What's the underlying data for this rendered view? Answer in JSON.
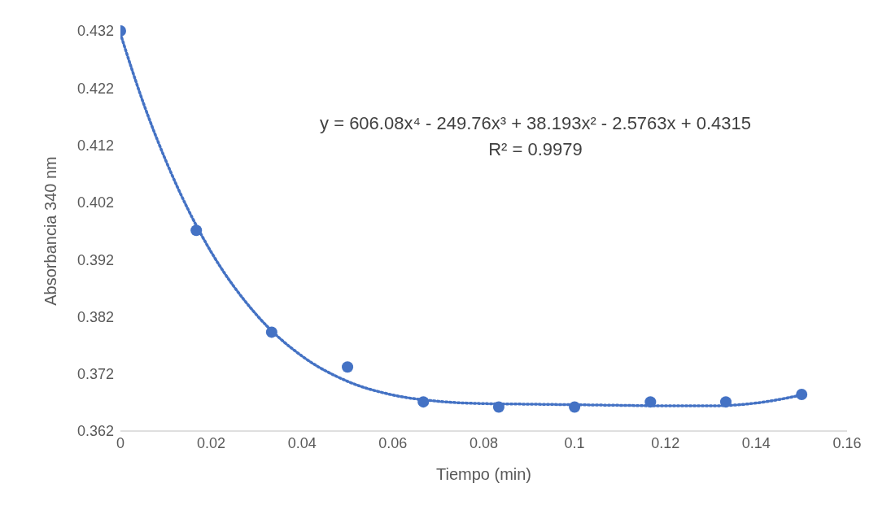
{
  "chart_data": {
    "type": "scatter",
    "xlabel": "Tiempo (min)",
    "ylabel": "Absorbancia 340 nm",
    "x": [
      0,
      0.0167,
      0.0333,
      0.05,
      0.0667,
      0.0833,
      0.1,
      0.1167,
      0.1333,
      0.15
    ],
    "series": [
      {
        "color": "#4472c4",
        "marker": "circle",
        "values": [
          0.432,
          0.3971,
          0.3793,
          0.3732,
          0.3671,
          0.3662,
          0.3662,
          0.3671,
          0.3671,
          0.3684
        ]
      },
      {
        "type": "line",
        "color": "#4472c4",
        "line_style": "dotted",
        "marker": "none",
        "x": [
          0,
          0.005,
          0.01,
          0.015,
          0.02,
          0.03,
          0.04,
          0.05,
          0.06,
          0.07,
          0.08,
          0.09,
          0.1,
          0.11,
          0.12,
          0.13,
          0.14,
          0.15
        ],
        "values": [
          0.4315,
          0.4195,
          0.4093,
          0.4006,
          0.3933,
          0.3823,
          0.3751,
          0.3707,
          0.3683,
          0.3672,
          0.3668,
          0.3667,
          0.3666,
          0.3665,
          0.3664,
          0.3664,
          0.3669,
          0.3683
        ]
      }
    ],
    "xlim": [
      0,
      0.16
    ],
    "xticks": [
      0,
      0.02,
      0.04,
      0.06,
      0.08,
      0.1,
      0.12,
      0.14,
      0.16
    ],
    "ylim": [
      0.362,
      0.432
    ],
    "yticks": [
      0.362,
      0.372,
      0.382,
      0.392,
      0.402,
      0.412,
      0.422,
      0.432
    ],
    "grid": false,
    "annotations": [
      "y = 606.08x⁴ - 249.76x³ + 38.193x² - 2.5763x + 0.4315",
      "R² = 0.9979"
    ]
  }
}
